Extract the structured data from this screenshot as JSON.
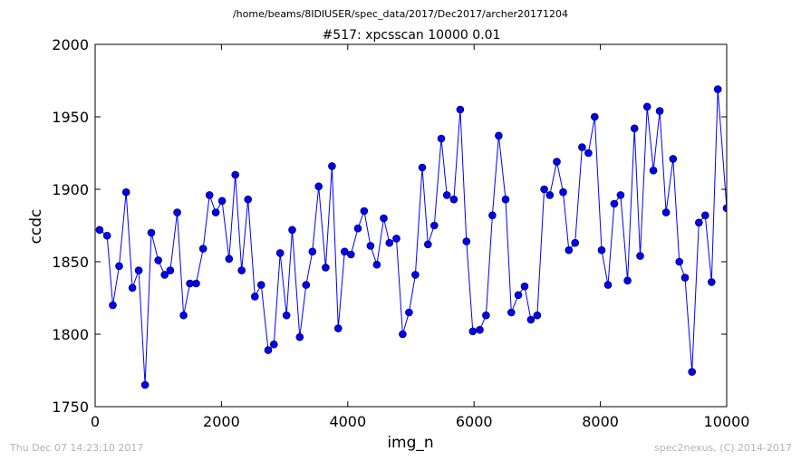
{
  "header": {
    "file_path": "/home/beams/8IDIUSER/spec_data/2017/Dec2017/archer20171204"
  },
  "footer": {
    "timestamp": "Thu Dec 07 14:23:10 2017",
    "credit": "spec2nexus, (C) 2014-2017"
  },
  "colors": {
    "series": "#0000ff",
    "axes": "#000000",
    "footer_text": "#b3b3b3"
  },
  "chart_data": {
    "type": "line",
    "title": "#517: xpcsscan 10000 0.01",
    "xlabel": "img_n",
    "ylabel": "ccdc",
    "xlim": [
      0,
      10000
    ],
    "ylim": [
      1750,
      2000
    ],
    "xticks": [
      "0",
      "2000",
      "4000",
      "6000",
      "8000",
      "10000"
    ],
    "yticks": [
      "1750",
      "1800",
      "1850",
      "1900",
      "1950",
      "2000"
    ],
    "grid": false,
    "legend": "none",
    "marker": "circle",
    "x": [
      70,
      190,
      280,
      380,
      490,
      590,
      690,
      790,
      890,
      1000,
      1100,
      1190,
      1300,
      1400,
      1500,
      1600,
      1710,
      1810,
      1910,
      2010,
      2120,
      2220,
      2320,
      2420,
      2530,
      2630,
      2740,
      2830,
      2930,
      3030,
      3120,
      3240,
      3340,
      3440,
      3540,
      3650,
      3750,
      3850,
      3950,
      4050,
      4160,
      4260,
      4360,
      4460,
      4570,
      4660,
      4770,
      4870,
      4970,
      5070,
      5180,
      5270,
      5370,
      5480,
      5570,
      5680,
      5780,
      5880,
      5980,
      6090,
      6190,
      6290,
      6390,
      6500,
      6590,
      6700,
      6800,
      6900,
      7000,
      7110,
      7200,
      7310,
      7410,
      7500,
      7600,
      7710,
      7810,
      7910,
      8020,
      8120,
      8220,
      8320,
      8430,
      8540,
      8630,
      8740,
      8840,
      8940,
      9040,
      9150,
      9250,
      9340,
      9450,
      9560,
      9660,
      9760,
      9860,
      10000
    ],
    "y": [
      1872,
      1868,
      1820,
      1847,
      1898,
      1832,
      1844,
      1765,
      1870,
      1851,
      1841,
      1844,
      1884,
      1813,
      1835,
      1835,
      1859,
      1896,
      1884,
      1892,
      1852,
      1910,
      1844,
      1893,
      1826,
      1834,
      1789,
      1793,
      1856,
      1813,
      1872,
      1798,
      1834,
      1857,
      1902,
      1846,
      1916,
      1804,
      1857,
      1855,
      1873,
      1885,
      1861,
      1848,
      1880,
      1863,
      1866,
      1800,
      1815,
      1841,
      1915,
      1862,
      1875,
      1935,
      1896,
      1893,
      1955,
      1864,
      1802,
      1803,
      1813,
      1882,
      1937,
      1893,
      1815,
      1827,
      1833,
      1810,
      1813,
      1900,
      1896,
      1919,
      1898,
      1858,
      1863,
      1929,
      1925,
      1950,
      1858,
      1834,
      1890,
      1896,
      1837,
      1942,
      1854,
      1957,
      1913,
      1954,
      1884,
      1921,
      1850,
      1839,
      1774,
      1877,
      1882,
      1836,
      1969,
      1887
    ]
  }
}
